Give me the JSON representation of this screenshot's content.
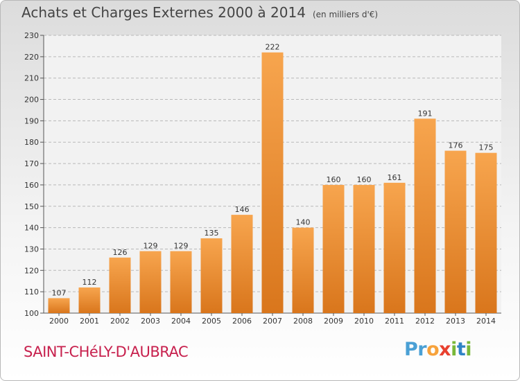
{
  "title": "Achats et Charges Externes 2000 à 2014",
  "subtitle": "(en milliers d'€)",
  "commune": "SAINT-CHéLY-D'AUBRAC",
  "logo": {
    "p1": "Pr",
    "p2": "o",
    "p3": "x",
    "p4": "i",
    "p5": "t",
    "p6": "i"
  },
  "colors": {
    "bar_light": "#f7a54e",
    "bar_dark": "#d9761c",
    "commune": "#c7204d",
    "axis_text": "#333333"
  },
  "chart_data": {
    "type": "bar",
    "title": "Achats et Charges Externes 2000 à 2014",
    "categories": [
      "2000",
      "2001",
      "2002",
      "2003",
      "2004",
      "2005",
      "2006",
      "2007",
      "2008",
      "2009",
      "2010",
      "2011",
      "2012",
      "2013",
      "2014"
    ],
    "values": [
      107,
      112,
      126,
      129,
      129,
      135,
      146,
      222,
      140,
      160,
      160,
      161,
      191,
      176,
      175
    ],
    "ylim": [
      100,
      230
    ],
    "yticks": [
      100,
      110,
      120,
      130,
      140,
      150,
      160,
      170,
      180,
      190,
      200,
      210,
      220,
      230
    ],
    "grid": true,
    "legend": "none"
  }
}
